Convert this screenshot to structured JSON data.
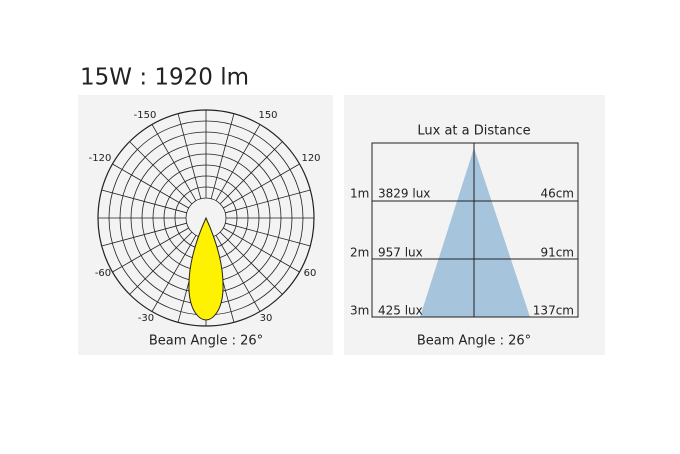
{
  "header": {
    "title": "15W : 1920 lm"
  },
  "polar": {
    "angle_labels": [
      "-150",
      "150",
      "-120",
      "120",
      "-60",
      "60",
      "-30",
      "30"
    ],
    "caption": "Beam Angle : 26°"
  },
  "lux": {
    "title": "Lux at a Distance",
    "rows": [
      {
        "distance": "1m",
        "lux": "3829 lux",
        "diameter": "46cm"
      },
      {
        "distance": "2m",
        "lux": "957 lux",
        "diameter": "91cm"
      },
      {
        "distance": "3m",
        "lux": "425 lux",
        "diameter": "137cm"
      }
    ],
    "caption": "Beam Angle : 26°"
  }
}
